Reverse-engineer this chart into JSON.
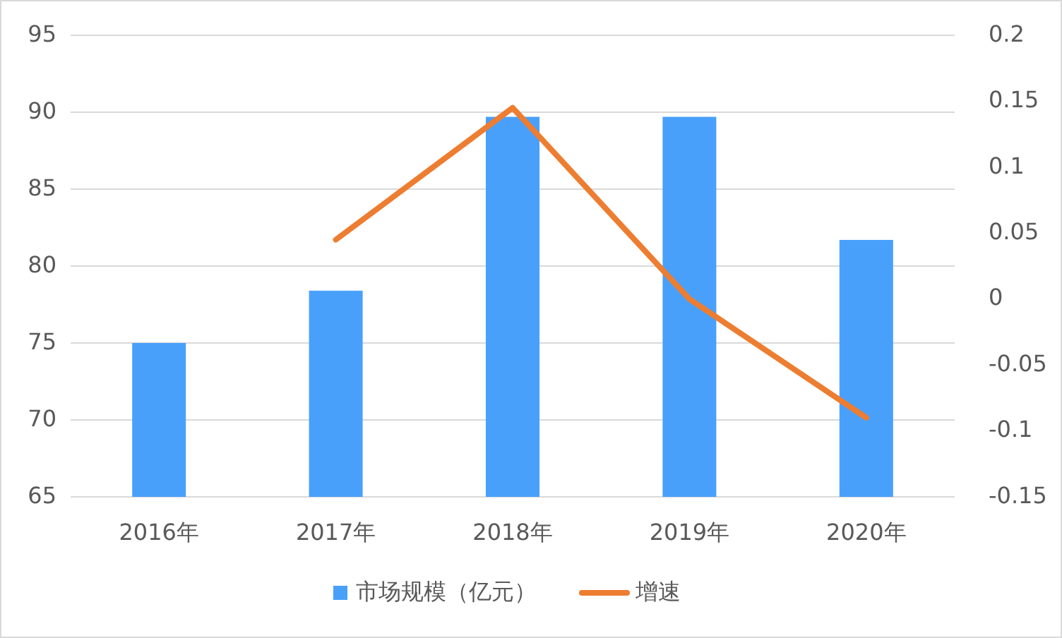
{
  "chart_data": {
    "type": "bar",
    "categories": [
      "2016年",
      "2017年",
      "2018年",
      "2019年",
      "2020年"
    ],
    "series": [
      {
        "name": "市场规模（亿元）",
        "color": "#48a0fb",
        "values": [
          75.0,
          78.4,
          89.7,
          89.7,
          81.7
        ]
      },
      {
        "name": "增速",
        "type": "line",
        "axis": "y2",
        "color": "#ed7d31",
        "values": [
          null,
          0.045,
          0.145,
          0.0,
          -0.09
        ]
      }
    ],
    "ylim": [
      65,
      95
    ],
    "yticks": [
      65,
      70,
      75,
      80,
      85,
      90,
      95
    ],
    "y2lim": [
      -0.15,
      0.2
    ],
    "y2ticks": [
      -0.15,
      -0.1,
      -0.05,
      0,
      0.05,
      0.1,
      0.15,
      0.2
    ],
    "grid": "y",
    "legend": "bottom"
  }
}
